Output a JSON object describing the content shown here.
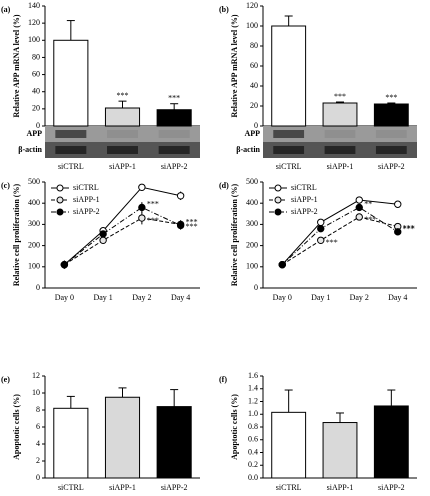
{
  "chart_data": [
    {
      "type": "bar",
      "panel_label": "(a)",
      "ylabel": "Relative APP mRNA level (%)",
      "categories": [
        "siCTRL",
        "siAPP-1",
        "siAPP-2"
      ],
      "values": [
        100,
        21,
        19
      ],
      "errors": [
        23,
        8,
        7
      ],
      "colors": [
        "#ffffff",
        "#d9d9d9",
        "#000000"
      ],
      "significance": [
        null,
        "***",
        "***"
      ],
      "ylim": [
        0,
        140
      ],
      "yticks": [
        0,
        20,
        40,
        60,
        80,
        100,
        120,
        140
      ],
      "blot_labels": [
        "APP",
        "β-actin"
      ]
    },
    {
      "type": "bar",
      "panel_label": "(b)",
      "ylabel": "Relative APP mRNA level (%)",
      "categories": [
        "siCTRL",
        "siAPP-1",
        "siAPP-2"
      ],
      "values": [
        100,
        23,
        22
      ],
      "errors": [
        10,
        1,
        1
      ],
      "colors": [
        "#ffffff",
        "#d9d9d9",
        "#000000"
      ],
      "significance": [
        null,
        "***",
        "***"
      ],
      "ylim": [
        0,
        120
      ],
      "yticks": [
        0,
        20,
        40,
        60,
        80,
        100,
        120
      ],
      "blot_labels": [
        "APP",
        "β-actin"
      ]
    },
    {
      "type": "line",
      "panel_label": "(c)",
      "ylabel": "Relative cell proliferation (%)",
      "categories": [
        "Day 0",
        "Day 1",
        "Day 2",
        "Day 4"
      ],
      "ylim": [
        0,
        500
      ],
      "yticks": [
        0,
        100,
        200,
        300,
        400,
        500
      ],
      "series": [
        {
          "name": "siCTRL",
          "color": "#ffffff",
          "dash": "solid",
          "values": [
            110,
            270,
            475,
            435
          ],
          "errors": [
            20,
            15,
            5,
            20
          ],
          "significance": [
            null,
            null,
            null,
            null
          ]
        },
        {
          "name": "siAPP-1",
          "color": "#e6e6e6",
          "dash": "dashed",
          "values": [
            110,
            225,
            330,
            300
          ],
          "errors": [
            15,
            15,
            30,
            20
          ],
          "significance": [
            null,
            null,
            "***",
            "***"
          ]
        },
        {
          "name": "siAPP-2",
          "color": "#000000",
          "dash": "dashdot",
          "values": [
            110,
            255,
            380,
            295
          ],
          "errors": [
            15,
            15,
            25,
            20
          ],
          "significance": [
            null,
            null,
            "***",
            "***"
          ]
        }
      ]
    },
    {
      "type": "line",
      "panel_label": "(d)",
      "ylabel": "Relative cell proliferation (%)",
      "categories": [
        "Day 0",
        "Day 1",
        "Day 2",
        "Day 4"
      ],
      "ylim": [
        0,
        500
      ],
      "yticks": [
        0,
        100,
        200,
        300,
        400,
        500
      ],
      "series": [
        {
          "name": "siCTRL",
          "color": "#ffffff",
          "dash": "solid",
          "values": [
            110,
            310,
            415,
            395
          ],
          "errors": [
            8,
            10,
            8,
            12
          ],
          "significance": [
            null,
            null,
            null,
            null
          ]
        },
        {
          "name": "siAPP-1",
          "color": "#e6e6e6",
          "dash": "dashed",
          "values": [
            110,
            225,
            335,
            290
          ],
          "errors": [
            8,
            10,
            15,
            12
          ],
          "significance": [
            null,
            "***",
            "***",
            "***"
          ]
        },
        {
          "name": "siAPP-2",
          "color": "#000000",
          "dash": "dashdot",
          "values": [
            110,
            280,
            380,
            265
          ],
          "errors": [
            8,
            10,
            12,
            10
          ],
          "significance": [
            null,
            null,
            "**",
            "***"
          ]
        }
      ]
    },
    {
      "type": "bar",
      "panel_label": "(e)",
      "ylabel": "Apoptotic cells (%)",
      "categories": [
        "siCTRL",
        "siAPP-1",
        "siAPP-2"
      ],
      "values": [
        8.2,
        9.5,
        8.4
      ],
      "errors": [
        1.4,
        1.1,
        2.0
      ],
      "colors": [
        "#ffffff",
        "#d9d9d9",
        "#000000"
      ],
      "ylim": [
        0,
        12
      ],
      "yticks": [
        0,
        2,
        4,
        6,
        8,
        10,
        12
      ]
    },
    {
      "type": "bar",
      "panel_label": "(f)",
      "ylabel": "Apoptotic cells (%)",
      "categories": [
        "siCTRL",
        "siAPP-1",
        "siAPP-2"
      ],
      "values": [
        1.03,
        0.87,
        1.13
      ],
      "errors": [
        0.35,
        0.15,
        0.25
      ],
      "colors": [
        "#ffffff",
        "#d9d9d9",
        "#000000"
      ],
      "ylim": [
        0,
        1.6
      ],
      "yticks": [
        {
          "value": 0,
          "label": "0.0"
        },
        0.2,
        0.4,
        0.6,
        0.8,
        {
          "value": 1,
          "label": "1.0"
        },
        1.2,
        1.4,
        1.6
      ]
    }
  ]
}
